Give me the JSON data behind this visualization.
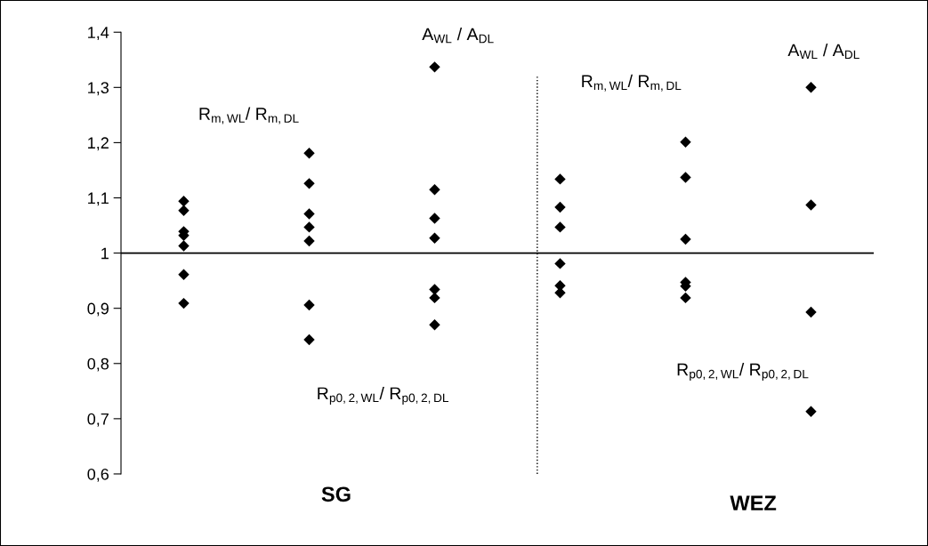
{
  "chart_data": {
    "type": "scatter",
    "marker": "diamond",
    "grid": false,
    "legend": false,
    "tick_labels": "y",
    "categories": [
      null,
      null,
      null,
      null,
      null,
      null
    ],
    "ylim": [
      0.6,
      1.4
    ],
    "yticks": [
      {
        "value": 0.6,
        "label": "0,6"
      },
      {
        "value": 0.7,
        "label": "0,7"
      },
      {
        "value": 0.8,
        "label": "0,8"
      },
      {
        "value": 0.9,
        "label": "0,9"
      },
      {
        "value": 1,
        "label": "1"
      },
      {
        "value": 1.1,
        "label": "1,1"
      },
      {
        "value": 1.2,
        "label": "1,2"
      },
      {
        "value": 1.3,
        "label": "1,3"
      },
      {
        "value": 1.4,
        "label": "1,4"
      }
    ],
    "series": [
      {
        "color": "#000000",
        "values": [
          1.094,
          1.181,
          1.337,
          1.134,
          1.201,
          1.3
        ]
      },
      {
        "color": "#000000",
        "values": [
          1.077,
          1.126,
          1.115,
          1.083,
          1.137,
          1.087
        ]
      },
      {
        "color": "#000000",
        "values": [
          1.039,
          1.071,
          1.063,
          1.047,
          1.025,
          0.893
        ]
      },
      {
        "color": "#000000",
        "values": [
          1.032,
          1.047,
          1.027,
          0.981,
          0.947,
          0.713
        ]
      },
      {
        "color": "#000000",
        "values": [
          1.013,
          1.022,
          0.934,
          0.941,
          0.94,
          null
        ]
      },
      {
        "color": "#000000",
        "values": [
          0.961,
          0.906,
          0.919,
          0.928,
          0.919,
          null
        ]
      },
      {
        "color": "#000000",
        "values": [
          0.909,
          0.843,
          0.87,
          null,
          null,
          null
        ]
      }
    ],
    "ref_lines": [
      {
        "axis": "y",
        "value": 1,
        "color": "#000000",
        "line_style": "solid"
      }
    ],
    "annotations": [
      "R$_{m,WL}$/ R$_{m,DL}$",
      "R$_{p0,2,WL}$/ R$_{p0,2,DL}$",
      "A$_{WL}$ / A$_{DL}$",
      "R$_{m,WL}$/ R$_{m,DL}$",
      "R$_{p0,2,WL}$/ R$_{p0,2,DL}$",
      "A$_{WL}$ / A$_{DL}$",
      "SG",
      "WEZ"
    ]
  }
}
